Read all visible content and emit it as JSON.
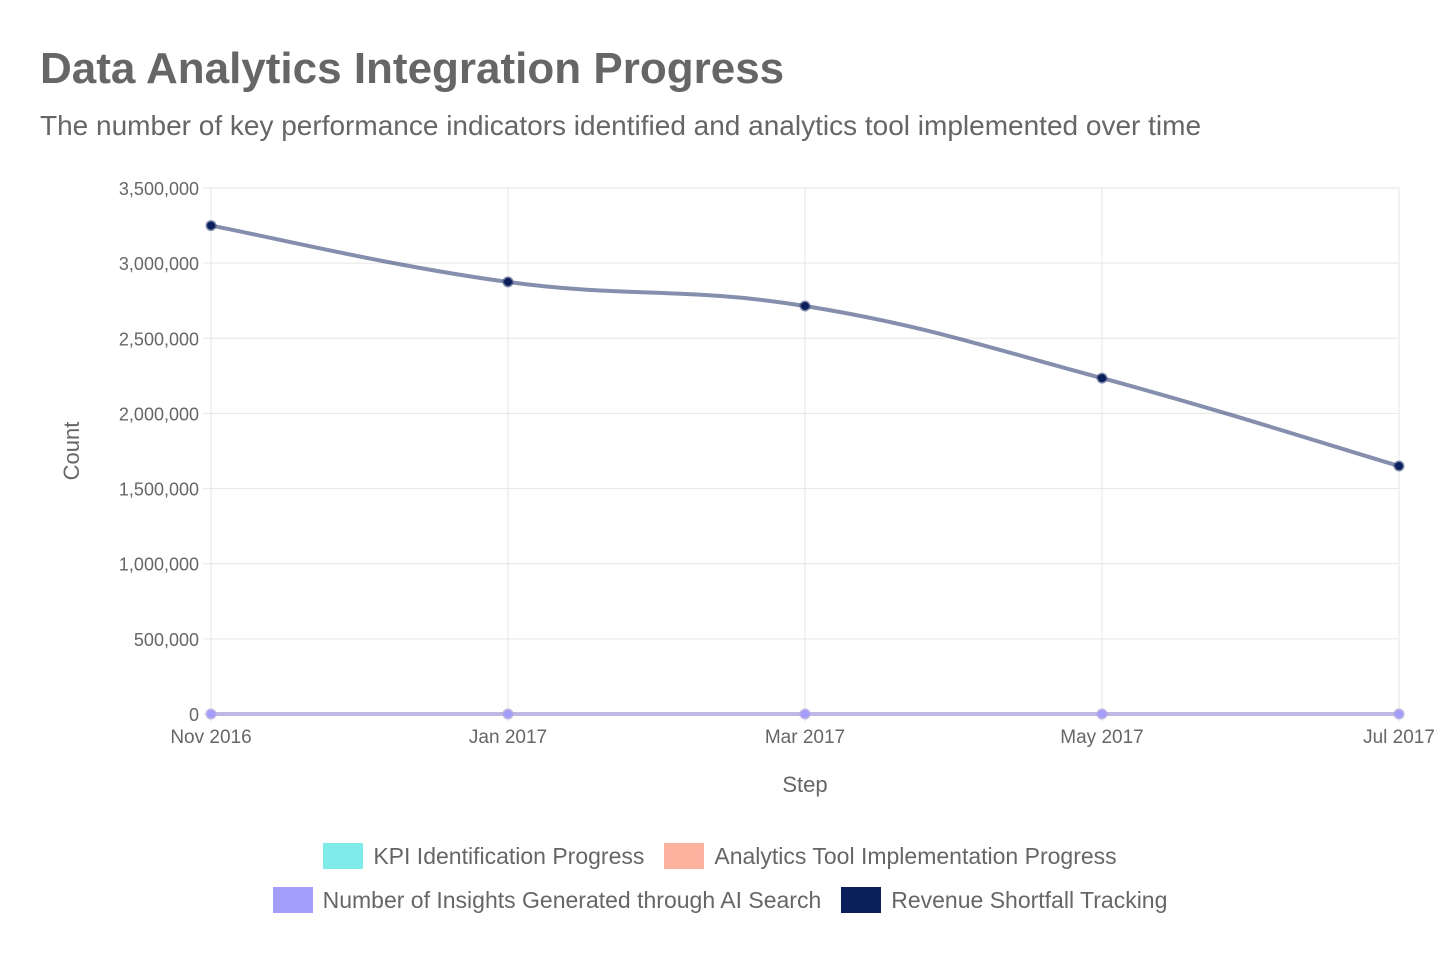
{
  "chart_data": {
    "type": "line",
    "title": "Data Analytics Integration Progress",
    "subtitle": "The number of key performance indicators identified and analytics tool implemented over time",
    "xlabel": "Step",
    "ylabel": "Count",
    "categories": [
      "Nov 2016",
      "Jan 2017",
      "Mar 2017",
      "May 2017",
      "Jul 2017"
    ],
    "ylim": [
      0,
      3500000
    ],
    "yticks": [
      0,
      500000,
      1000000,
      1500000,
      2000000,
      2500000,
      3000000,
      3500000
    ],
    "ytick_labels": [
      "0",
      "500,000",
      "1,000,000",
      "1,500,000",
      "2,000,000",
      "2,500,000",
      "3,000,000",
      "3,500,000"
    ],
    "grid": true,
    "legend_position": "bottom",
    "series": [
      {
        "name": "KPI Identification Progress",
        "color": "#7fecea",
        "values": [
          0,
          0,
          0,
          0,
          0
        ]
      },
      {
        "name": "Analytics Tool Implementation Progress",
        "color": "#fbb3a0",
        "values": [
          0,
          0,
          0,
          0,
          0
        ]
      },
      {
        "name": "Number of Insights Generated through AI Search",
        "color": "#a39dfb",
        "values": [
          0,
          0,
          0,
          0,
          0
        ]
      },
      {
        "name": "Revenue Shortfall Tracking",
        "color": "#0b1f5c",
        "values": [
          3250000,
          2875000,
          2715000,
          2235000,
          1650000
        ]
      }
    ]
  }
}
